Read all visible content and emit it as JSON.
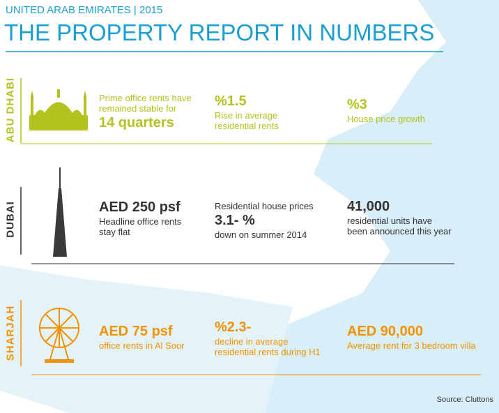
{
  "header": {
    "subtitle": "UNITED ARAB EMIRATES | 2015",
    "title": "THE PROPERTY REPORT IN NUMBERS"
  },
  "sections": [
    {
      "name": "ABU DHABI",
      "items": [
        {
          "before": [
            "Prime office rents have",
            "remained stable for"
          ],
          "big": "14 quarters",
          "after": []
        },
        {
          "before": [],
          "big": "%1.5",
          "after": [
            "Rise in average",
            "residential rents"
          ]
        },
        {
          "before": [],
          "big": "%3",
          "after": [
            "House price growth"
          ]
        }
      ]
    },
    {
      "name": "DUBAI",
      "items": [
        {
          "before": [],
          "big": "AED 250 psf",
          "after": [
            "Headline office rents",
            "stay flat"
          ]
        },
        {
          "before": [
            "Residential house prices"
          ],
          "big": "3.1- %",
          "after": [
            "down on summer 2014"
          ]
        },
        {
          "before": [],
          "big": "41,000",
          "after": [
            "residential units have",
            "been announced this year"
          ]
        }
      ]
    },
    {
      "name": "SHARJAH",
      "items": [
        {
          "before": [],
          "big": "AED 75 psf",
          "after": [
            "office rents in Al Soor"
          ]
        },
        {
          "before": [],
          "big": "%2.3-",
          "after": [
            "decline in average",
            "residential rents during H1"
          ]
        },
        {
          "before": [],
          "big": "AED 90,000",
          "after": [
            "Average rent for 3 bedroom villa"
          ]
        }
      ]
    }
  ],
  "source": "Source: Cluttons"
}
